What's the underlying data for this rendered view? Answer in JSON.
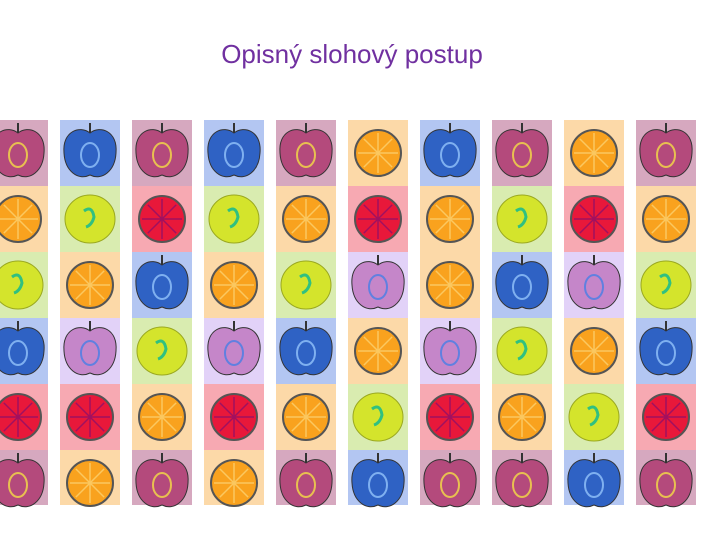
{
  "title": "Opisný slohový postup"
}
